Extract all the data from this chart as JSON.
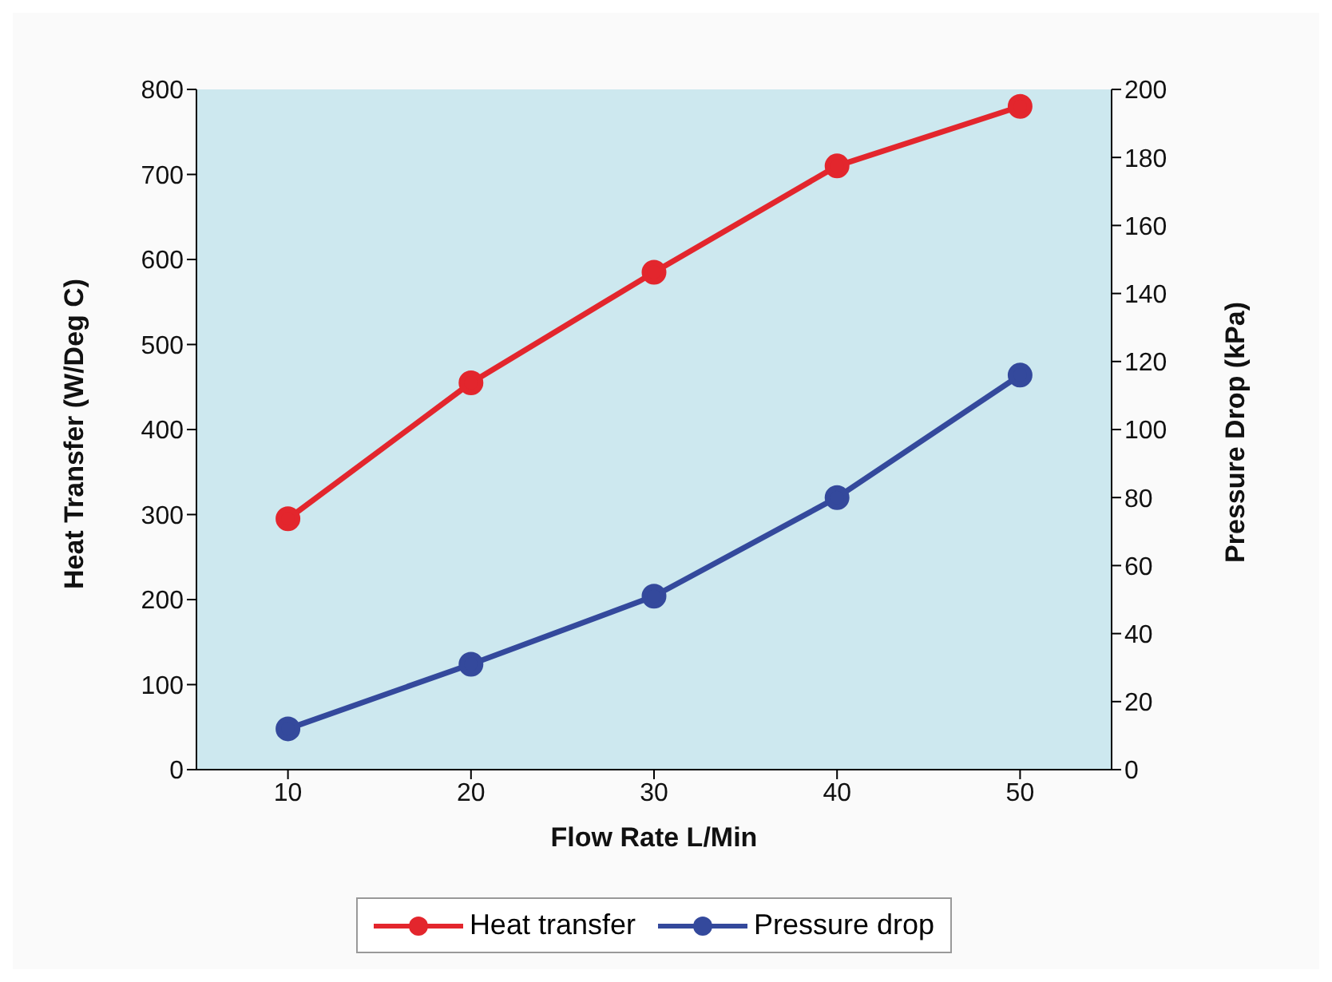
{
  "chart_data": {
    "type": "line",
    "xlabel": "Flow Rate L/Min",
    "ylabel": "Heat Transfer (W/Deg C)",
    "y2label": "Pressure Drop (kPa)",
    "categories": [
      "10",
      "20",
      "30",
      "40",
      "50"
    ],
    "series": [
      {
        "name": "Heat transfer",
        "color": "#e3262d",
        "values": [
          295,
          455,
          585,
          710,
          780
        ]
      },
      {
        "name": "Pressure drop",
        "color": "#34499c",
        "axis": "y2",
        "values": [
          12,
          31,
          51,
          80,
          116
        ]
      }
    ],
    "ylim": [
      0,
      800
    ],
    "yticks": [
      0,
      100,
      200,
      300,
      400,
      500,
      600,
      700,
      800
    ],
    "y2lim": [
      0,
      200
    ],
    "y2ticks": [
      0,
      20,
      40,
      60,
      80,
      100,
      120,
      140,
      160,
      180,
      200
    ],
    "grid": false,
    "legend": "bottom",
    "marker": "circle",
    "line_style": "solid"
  }
}
